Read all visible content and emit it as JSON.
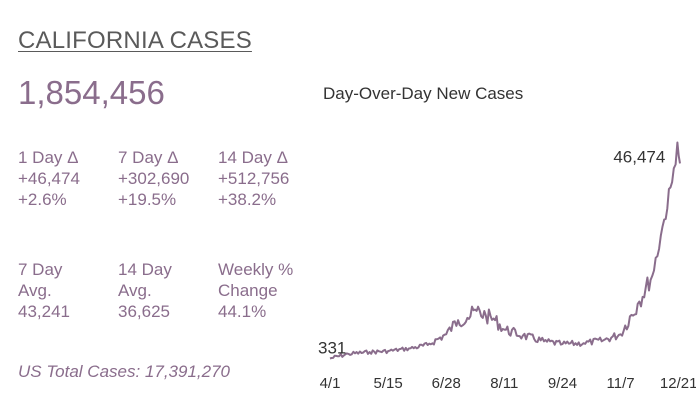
{
  "header": {
    "title": "CALIFORNIA CASES",
    "total": "1,854,456"
  },
  "stats": [
    {
      "label": "1 Day Δ",
      "value": "+46,474",
      "pct": "+2.6%"
    },
    {
      "label": "7 Day Δ",
      "value": "+302,690",
      "pct": "+19.5%"
    },
    {
      "label": "14 Day Δ",
      "value": "+512,756",
      "pct": "+38.2%"
    },
    {
      "label_line1": "7 Day",
      "label_line2": "Avg.",
      "value": "43,241"
    },
    {
      "label_line1": "14 Day",
      "label_line2": "Avg.",
      "value": "36,625"
    },
    {
      "label_line1": "Weekly %",
      "label_line2": "Change",
      "value": "44.1%"
    }
  ],
  "footer": {
    "us_total": "US Total Cases: 17,391,270"
  },
  "chart_data": {
    "type": "line",
    "title": "Day-Over-Day New Cases",
    "x_tick_labels": [
      "4/1",
      "5/15",
      "6/28",
      "8/11",
      "9/24",
      "11/7",
      "12/21"
    ],
    "x_range": [
      "4/1",
      "12/22"
    ],
    "ylim": [
      0,
      50000
    ],
    "grid": false,
    "annotations": {
      "start_value": "331",
      "peak_value": "46,474"
    },
    "line_color": "#8a6d8c",
    "points": [
      [
        "4/1",
        331
      ],
      [
        "4/15",
        1300
      ],
      [
        "5/1",
        1700
      ],
      [
        "5/15",
        1900
      ],
      [
        "6/1",
        2500
      ],
      [
        "6/14",
        3200
      ],
      [
        "6/28",
        5500
      ],
      [
        "7/7",
        8500
      ],
      [
        "7/14",
        9000
      ],
      [
        "7/21",
        10500
      ],
      [
        "7/28",
        9500
      ],
      [
        "8/4",
        8500
      ],
      [
        "8/11",
        6500
      ],
      [
        "8/25",
        5200
      ],
      [
        "9/10",
        4000
      ],
      [
        "9/24",
        3400
      ],
      [
        "10/10",
        3600
      ],
      [
        "10/25",
        4200
      ],
      [
        "11/7",
        5500
      ],
      [
        "11/20",
        12000
      ],
      [
        "12/1",
        18000
      ],
      [
        "12/10",
        30000
      ],
      [
        "12/16",
        38000
      ],
      [
        "12/20",
        46474
      ],
      [
        "12/22",
        42000
      ]
    ]
  }
}
